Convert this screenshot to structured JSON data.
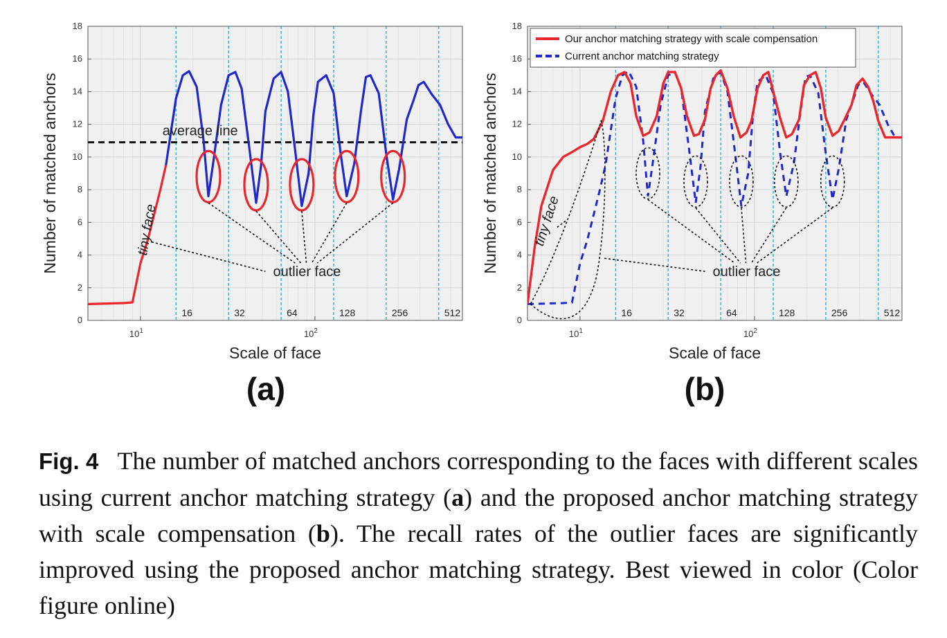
{
  "chart_data": [
    {
      "panel": "(a)",
      "type": "line",
      "xscale": "log",
      "xlim": [
        5,
        700
      ],
      "ylim": [
        0,
        18
      ],
      "yticks": [
        0,
        2,
        4,
        6,
        8,
        10,
        12,
        14,
        16,
        18
      ],
      "xticks": [
        {
          "value": 10,
          "label": "10^1"
        },
        {
          "value": 100,
          "label": "10^2"
        }
      ],
      "xlabel": "Scale of face",
      "ylabel": "Number of matched anchors",
      "grid": true,
      "vlines": [
        16,
        32,
        64,
        128,
        256,
        512
      ],
      "vline_labels": [
        "16",
        "32",
        "64",
        "128",
        "256",
        "512"
      ],
      "average_line": {
        "y": 10.9,
        "label": "average line"
      },
      "series": [
        {
          "color": "#e8262b",
          "segment": "tiny",
          "x": [
            5,
            6,
            7,
            8,
            9,
            10,
            11,
            12,
            13,
            14
          ],
          "y": [
            1.0,
            1.02,
            1.04,
            1.06,
            1.1,
            3.5,
            4.9,
            6.5,
            8.0,
            9.5
          ]
        },
        {
          "color": "#1f28c8",
          "segment": "normal",
          "x": [
            14,
            16,
            17.5,
            19,
            21,
            23,
            24.5,
            26,
            29,
            32,
            35,
            38,
            42,
            46,
            49,
            52,
            58,
            64,
            70,
            77,
            84,
            92,
            98,
            104,
            116,
            128,
            140,
            152,
            168,
            184,
            196,
            208,
            232,
            256,
            280,
            304,
            336,
            368,
            392,
            420,
            470,
            520,
            580,
            640,
            700
          ],
          "y": [
            9.5,
            13.6,
            15.0,
            15.25,
            14.3,
            11.0,
            7.6,
            9.5,
            13.2,
            15.0,
            15.2,
            14.2,
            10.6,
            7.2,
            9.4,
            12.8,
            14.8,
            15.2,
            14.0,
            10.4,
            7.0,
            9.0,
            12.6,
            14.6,
            15.0,
            13.9,
            10.3,
            7.6,
            9.6,
            12.9,
            14.9,
            15.0,
            13.9,
            10.2,
            7.4,
            9.3,
            12.3,
            13.5,
            14.4,
            14.6,
            13.8,
            13.2,
            12.0,
            11.2,
            11.2
          ]
        }
      ],
      "outlier_circles": [
        {
          "x": 24.5,
          "y": 8.8
        },
        {
          "x": 46,
          "y": 8.3
        },
        {
          "x": 84,
          "y": 8.3
        },
        {
          "x": 152,
          "y": 8.8
        },
        {
          "x": 280,
          "y": 8.8
        }
      ],
      "annotations": [
        {
          "text": "tiny face",
          "x": 11.5,
          "y": 5.5
        },
        {
          "text": "outlier face",
          "x": 90,
          "y": 3.0
        },
        {
          "text": "average line",
          "x": 14,
          "y": 11.5
        }
      ]
    },
    {
      "panel": "(b)",
      "type": "line",
      "xscale": "log",
      "xlim": [
        5,
        700
      ],
      "ylim": [
        0,
        18
      ],
      "yticks": [
        0,
        2,
        4,
        6,
        8,
        10,
        12,
        14,
        16,
        18
      ],
      "xticks": [
        {
          "value": 10,
          "label": "10^1"
        },
        {
          "value": 100,
          "label": "10^2"
        }
      ],
      "xlabel": "Scale of face",
      "ylabel": "Number of matched anchors",
      "grid": true,
      "legend_position": "top-left",
      "vlines": [
        16,
        32,
        64,
        128,
        256,
        512
      ],
      "vline_labels": [
        "16",
        "32",
        "64",
        "128",
        "256",
        "512"
      ],
      "series": [
        {
          "name": "Our anchor matching strategy with scale compensation",
          "color": "#e8262b",
          "style": "solid",
          "x": [
            5,
            5.5,
            6,
            7,
            8,
            9,
            10,
            11,
            12,
            13.5,
            15,
            16.5,
            18,
            19.5,
            21,
            23,
            25,
            27.5,
            30,
            32,
            35,
            38,
            41,
            45,
            48,
            52,
            56,
            60,
            64,
            70,
            76,
            83,
            90,
            96,
            104,
            112,
            120,
            128,
            140,
            152,
            164,
            180,
            192,
            208,
            224,
            240,
            256,
            280,
            304,
            328,
            360,
            384,
            416,
            448,
            480,
            512,
            560,
            600,
            640,
            700
          ],
          "y": [
            1.0,
            4.5,
            7.0,
            9.2,
            10.0,
            10.3,
            10.6,
            10.8,
            11.1,
            12.2,
            14.0,
            15.0,
            15.2,
            14.5,
            12.5,
            11.3,
            11.5,
            12.5,
            14.5,
            15.2,
            15.2,
            14.2,
            12.5,
            11.3,
            11.4,
            12.3,
            14.2,
            15.0,
            15.3,
            14.2,
            12.5,
            11.2,
            11.5,
            12.2,
            14.2,
            15.0,
            15.2,
            14.0,
            12.4,
            11.2,
            11.4,
            12.3,
            14.4,
            15.0,
            15.2,
            14.2,
            12.4,
            11.3,
            11.6,
            12.3,
            13.2,
            14.4,
            14.8,
            14.3,
            13.4,
            12.2,
            11.2,
            11.2,
            11.2,
            11.2
          ]
        },
        {
          "name": "Current anchor matching strategy",
          "color": "#1f28c8",
          "style": "dashed",
          "x": [
            5,
            6,
            7,
            8,
            9,
            10,
            11,
            12,
            13,
            14,
            16,
            17.5,
            19,
            21,
            23,
            24.5,
            26,
            29,
            32,
            35,
            38,
            42,
            46,
            49,
            52,
            58,
            64,
            70,
            77,
            84,
            92,
            98,
            104,
            116,
            128,
            140,
            152,
            168,
            184,
            196,
            208,
            232,
            256,
            280,
            304,
            336,
            368,
            392,
            420,
            470,
            520,
            580,
            640,
            700
          ],
          "y": [
            1.0,
            1.02,
            1.04,
            1.06,
            1.1,
            3.5,
            4.9,
            6.5,
            8.0,
            9.5,
            13.6,
            15.0,
            15.25,
            14.3,
            11.0,
            7.6,
            9.5,
            13.2,
            15.0,
            15.2,
            14.2,
            10.6,
            7.2,
            9.4,
            12.8,
            14.8,
            15.2,
            14.0,
            10.4,
            7.0,
            9.0,
            12.6,
            14.6,
            15.0,
            13.9,
            10.3,
            7.6,
            9.6,
            12.9,
            14.9,
            15.0,
            13.9,
            10.2,
            7.4,
            9.3,
            12.3,
            13.5,
            14.4,
            14.6,
            13.8,
            13.2,
            12.0,
            11.2,
            11.2
          ]
        }
      ],
      "outlier_circles": [
        {
          "x": 24.5,
          "y": 9.0
        },
        {
          "x": 46,
          "y": 8.5
        },
        {
          "x": 84,
          "y": 8.5
        },
        {
          "x": 152,
          "y": 8.5
        },
        {
          "x": 280,
          "y": 8.5
        }
      ],
      "annotations": [
        {
          "text": "tiny face",
          "x": 6.8,
          "y": 6.0
        },
        {
          "text": "outlier face",
          "x": 90,
          "y": 3.0
        }
      ]
    }
  ],
  "figure": {
    "panel_a_label": "(a)",
    "panel_b_label": "(b)",
    "tick_10_base": "10",
    "tick_10_exp": "1",
    "tick_100_base": "10",
    "tick_100_exp": "2",
    "legend": {
      "ours": "Our anchor matching strategy with scale compensation",
      "current": "Current anchor matching strategy"
    }
  },
  "caption": {
    "label": "Fig. 4",
    "text_1": "The number of matched anchors corresponding to the faces with different scales using current anchor matching strategy (",
    "bold_a": "a",
    "text_2": ") and the proposed anchor matching strategy with scale compensation (",
    "bold_b": "b",
    "text_3": "). The recall rates of the outlier faces are significantly improved using the proposed anchor matching strategy. Best viewed in color (Color figure online)"
  },
  "colors": {
    "red": "#e8262b",
    "blue": "#1f28c8",
    "vline": "#3bb8e8",
    "plot_bg": "#f0f0f0"
  }
}
